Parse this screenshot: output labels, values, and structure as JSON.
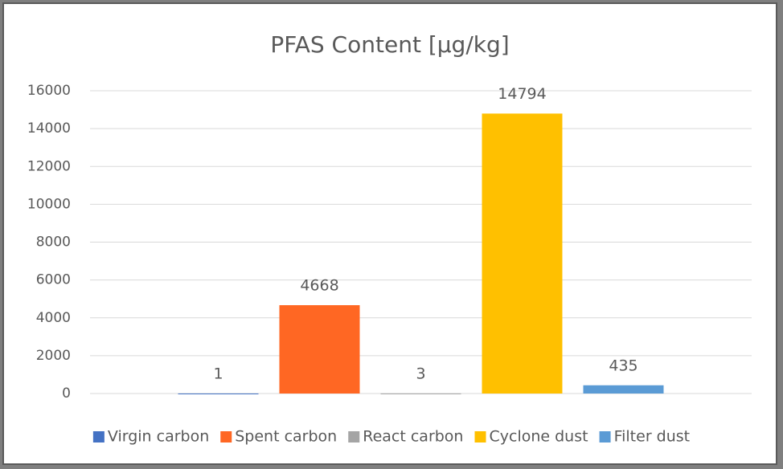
{
  "chart_data": {
    "type": "bar",
    "title": "PFAS Content [µg/kg]",
    "categories": [
      null
    ],
    "series": [
      {
        "name": "Virgin carbon",
        "color": "#4472c4",
        "values": [
          1
        ]
      },
      {
        "name": "Spent carbon",
        "color": "#ff6723",
        "values": [
          4668
        ]
      },
      {
        "name": "React carbon",
        "color": "#a5a5a5",
        "values": [
          3
        ]
      },
      {
        "name": "Cyclone dust",
        "color": "#ffc000",
        "values": [
          14794
        ]
      },
      {
        "name": "Filter dust",
        "color": "#5b9bd5",
        "values": [
          435
        ]
      }
    ],
    "ylim": [
      0,
      16000
    ],
    "yticks": [
      0,
      2000,
      4000,
      6000,
      8000,
      10000,
      12000,
      14000,
      16000
    ],
    "grid": true,
    "legend": "bottom"
  }
}
